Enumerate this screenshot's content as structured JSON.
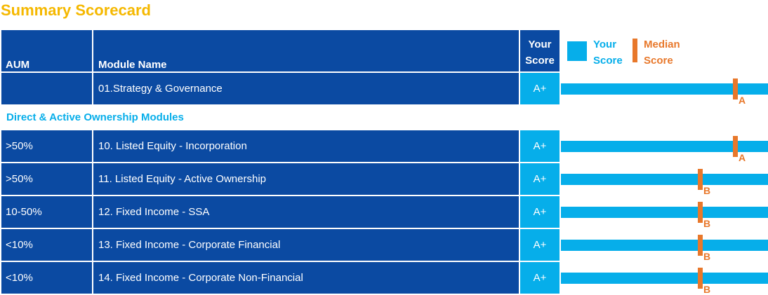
{
  "title": "Summary Scorecard",
  "header": {
    "aum": "AUM",
    "module_name": "Module Name",
    "your_score_line1": "Your",
    "your_score_line2": "Score"
  },
  "legend": {
    "your_line1": "Your",
    "your_line2": "Score",
    "median_line1": "Median",
    "median_line2": "Score"
  },
  "colors": {
    "title": "#f5b800",
    "dark_blue": "#0b4aa2",
    "light_blue": "#06aeea",
    "orange": "#e8782b"
  },
  "top_rows": [
    {
      "aum": "",
      "module": "01.Strategy & Governance",
      "score": "A+",
      "median": "A",
      "median_pos": 0.83
    }
  ],
  "section": "Direct & Active Ownership Modules",
  "rows": [
    {
      "aum": ">50%",
      "module": "10. Listed Equity - Incorporation",
      "score": "A+",
      "median": "A",
      "median_pos": 0.83
    },
    {
      "aum": ">50%",
      "module": "11. Listed Equity - Active Ownership",
      "score": "A+",
      "median": "B",
      "median_pos": 0.66
    },
    {
      "aum": "10-50%",
      "module": "12. Fixed Income - SSA",
      "score": "A+",
      "median": "B",
      "median_pos": 0.66
    },
    {
      "aum": "<10%",
      "module": "13. Fixed Income - Corporate Financial",
      "score": "A+",
      "median": "B",
      "median_pos": 0.66
    },
    {
      "aum": "<10%",
      "module": "14. Fixed Income - Corporate Non-Financial",
      "score": "A+",
      "median": "B",
      "median_pos": 0.66
    }
  ]
}
